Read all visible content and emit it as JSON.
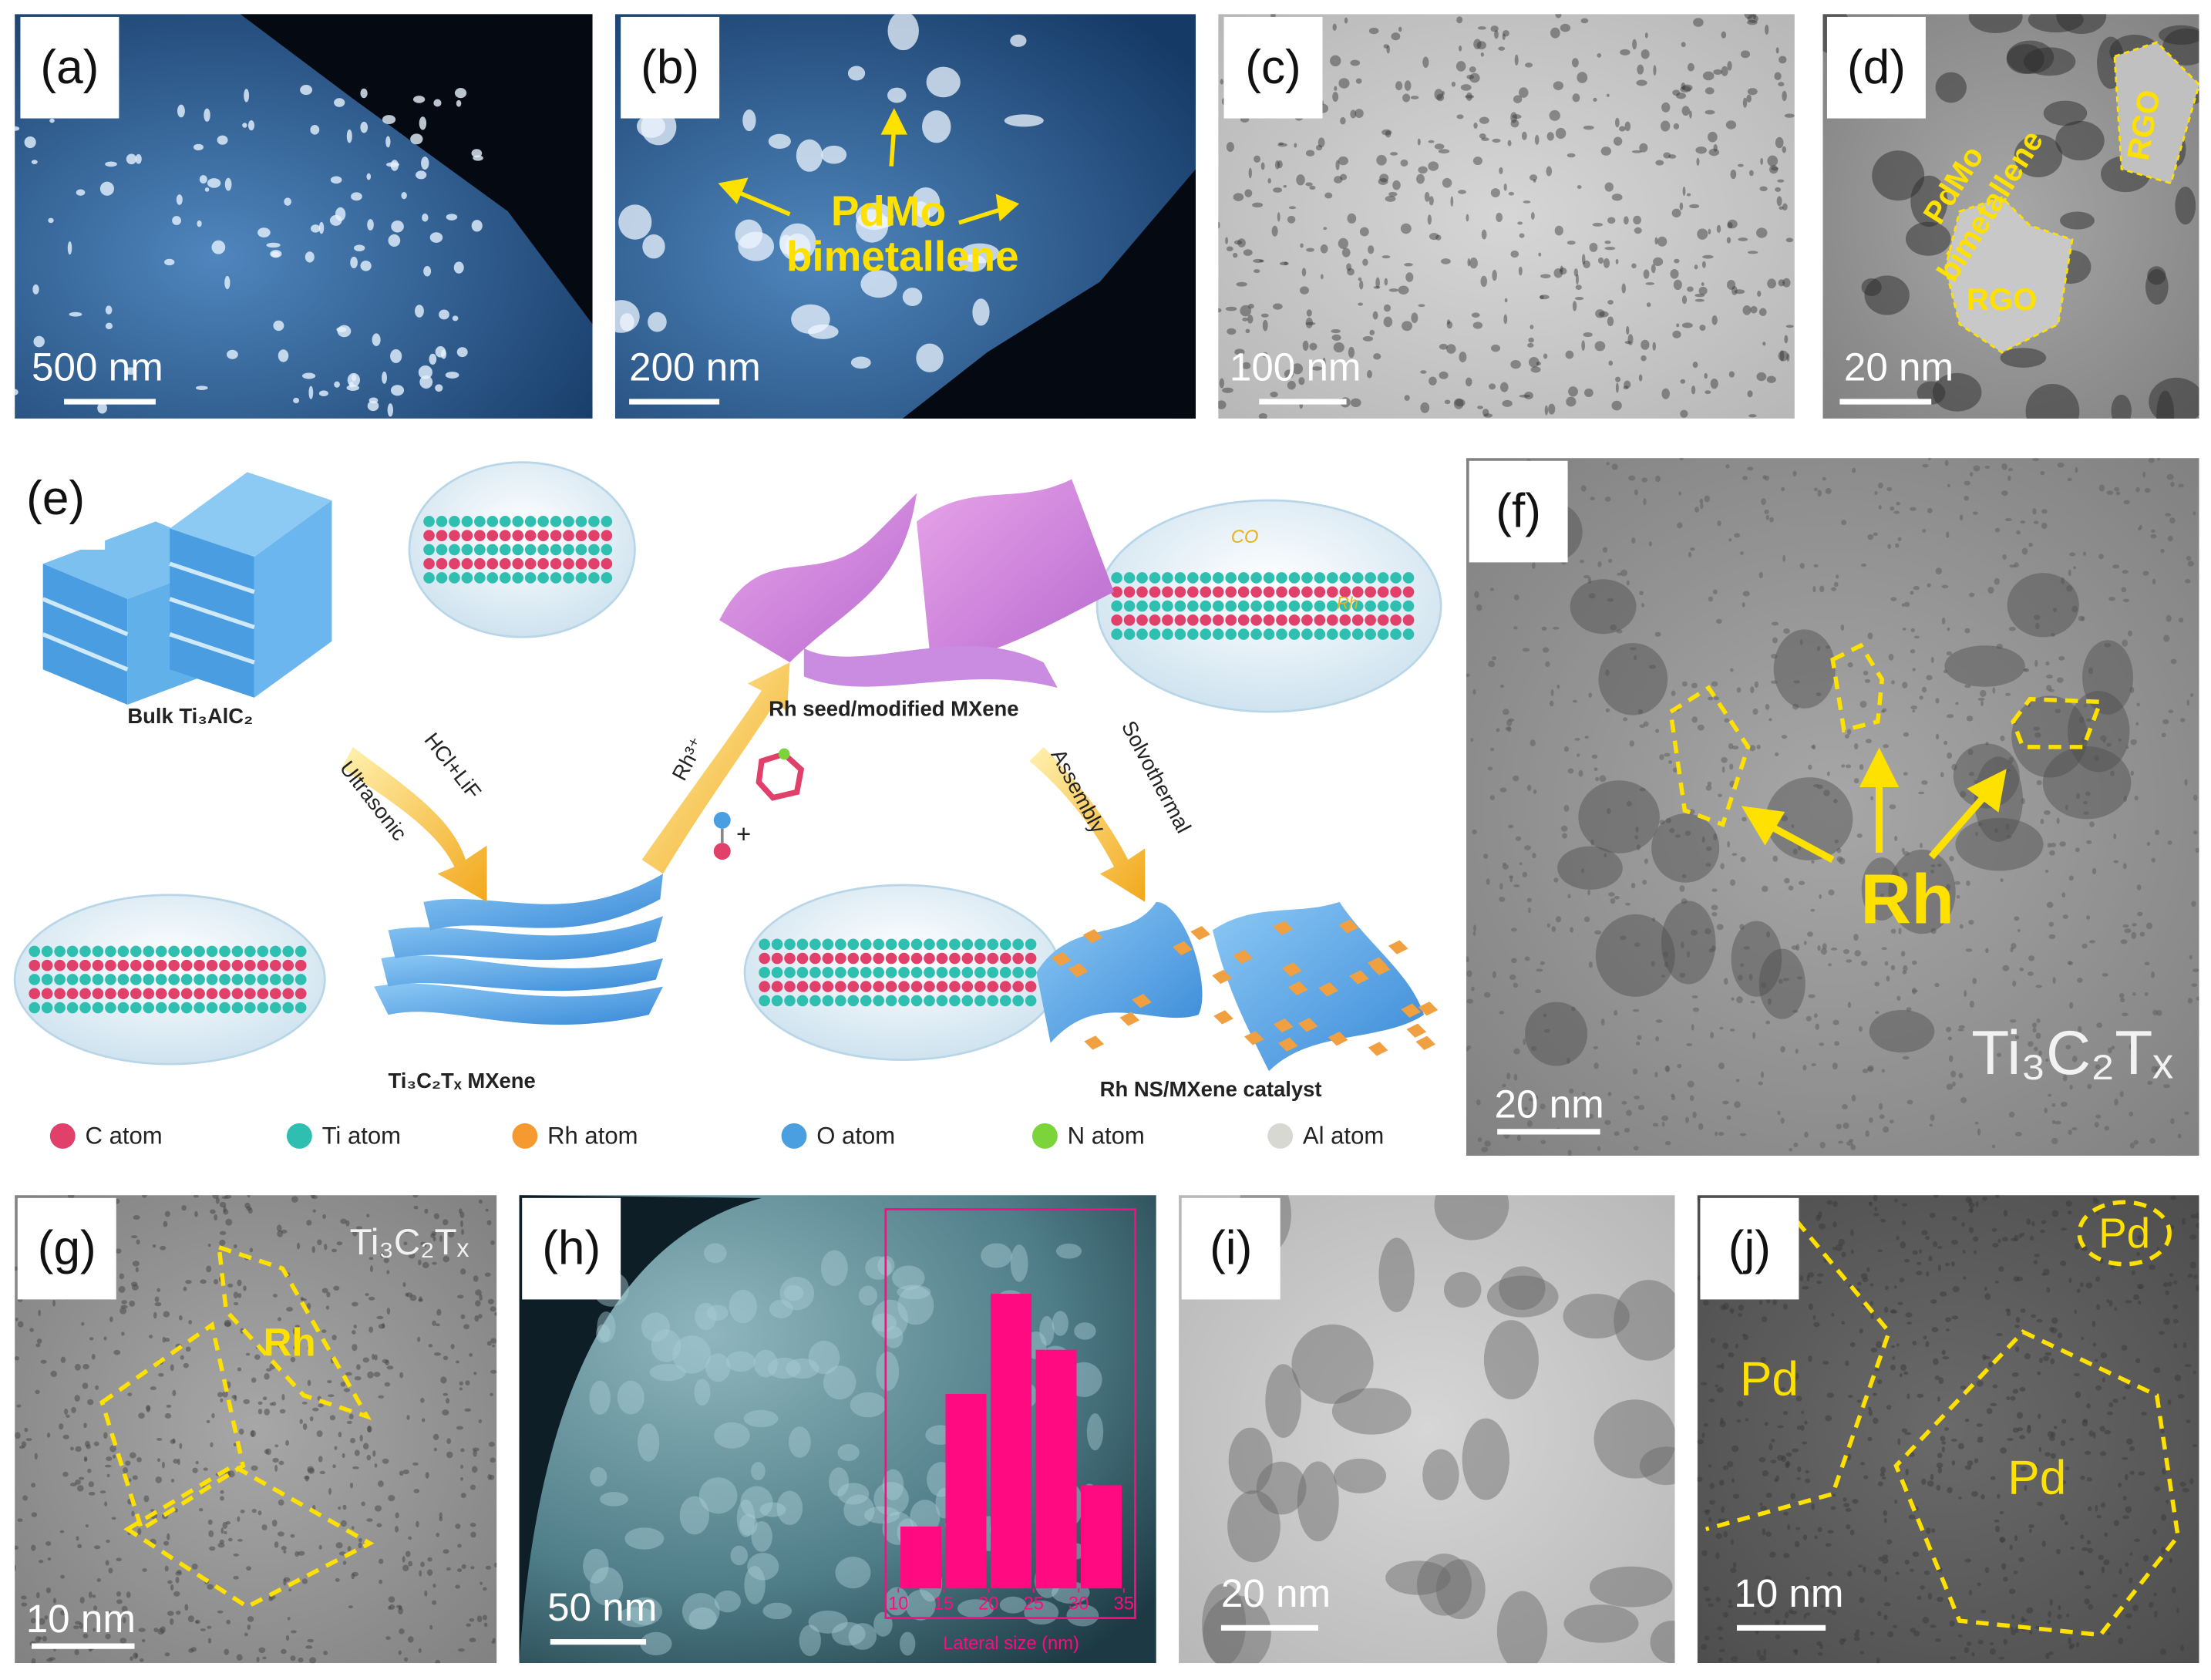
{
  "panels": {
    "a": {
      "label": "(a)",
      "scale_bar": "500 nm"
    },
    "b": {
      "label": "(b)",
      "scale_bar": "200 nm",
      "annotation": [
        "PdMo",
        "bimetallene"
      ]
    },
    "c": {
      "label": "(c)",
      "scale_bar": "100 nm"
    },
    "d": {
      "label": "(d)",
      "scale_bar": "20 nm",
      "annotation": [
        "PdMo",
        "bimetallene"
      ],
      "regions": [
        "RGO",
        "RGO"
      ]
    },
    "e": {
      "label": "(e)"
    },
    "f": {
      "label": "(f)",
      "scale_bar": "20 nm",
      "annotation": "Rh",
      "material": "Ti₃C₂Tₓ"
    },
    "g": {
      "label": "(g)",
      "scale_bar": "10 nm",
      "annotation": "Rh",
      "material": "Ti₃C₂Tₓ"
    },
    "h": {
      "label": "(h)",
      "scale_bar": "50 nm"
    },
    "i": {
      "label": "(i)",
      "scale_bar": "20 nm"
    },
    "j": {
      "label": "(j)",
      "scale_bar": "10 nm",
      "regions": [
        "Pd",
        "Pd",
        "Pd"
      ]
    }
  },
  "schematic": {
    "bulk": "Bulk Ti₃AlC₂",
    "mxene": "Ti₃C₂Tₓ MXene",
    "seed": "Rh seed/modified MXene",
    "catalyst": "Rh NS/MXene catalyst",
    "step1": [
      "HCl+LiF",
      "Ultrasonic"
    ],
    "step2": [
      "Rh³⁺",
      "+"
    ],
    "step3": [
      "Solvothermal",
      "Assembly"
    ],
    "bubble": [
      "CO",
      "Rh"
    ],
    "legend": [
      {
        "name": "C atom",
        "color": "#e0406a"
      },
      {
        "name": "Ti atom",
        "color": "#2fbfb0"
      },
      {
        "name": "Rh atom",
        "color": "#f59a30"
      },
      {
        "name": "O atom",
        "color": "#4a9fe0"
      },
      {
        "name": "N atom",
        "color": "#7ad43a"
      },
      {
        "name": "Al atom",
        "color": "#d8d8d2"
      }
    ]
  },
  "chart_data": {
    "type": "histogram",
    "xlabel": "Lateral size (nm)",
    "bins": [
      10,
      15,
      20,
      25,
      30,
      35
    ],
    "values": [
      21,
      66,
      100,
      81,
      35
    ],
    "xlim": [
      10,
      35
    ],
    "xticks": [
      10,
      15,
      20,
      25,
      30,
      35
    ],
    "color": "#ff0a80"
  }
}
